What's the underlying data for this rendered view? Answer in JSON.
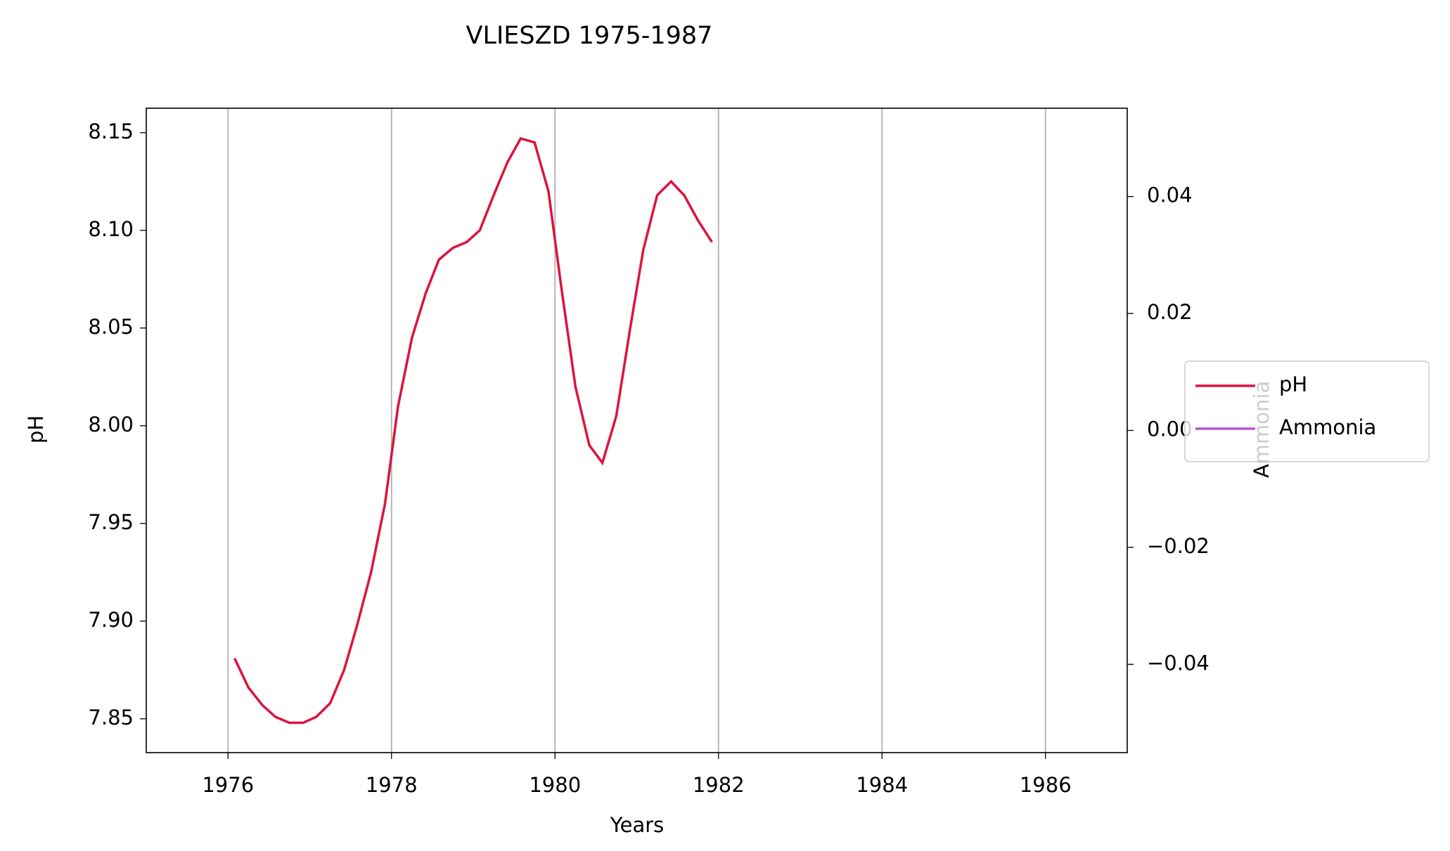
{
  "chart_data": {
    "type": "line",
    "title": "VLIESZD 1975-1987",
    "x_label": "Years",
    "y_label": "pH",
    "y2_label": "Ammonia",
    "x": [
      1976.08,
      1976.25,
      1976.42,
      1976.58,
      1976.75,
      1976.92,
      1977.08,
      1977.25,
      1977.42,
      1977.58,
      1977.75,
      1977.92,
      1978.08,
      1978.25,
      1978.42,
      1978.58,
      1978.75,
      1978.92,
      1979.08,
      1979.25,
      1979.42,
      1979.58,
      1979.75,
      1979.92,
      1980.08,
      1980.25,
      1980.42,
      1980.58,
      1980.75,
      1980.92,
      1981.08,
      1981.25,
      1981.42,
      1981.58,
      1981.75,
      1981.92
    ],
    "series": [
      {
        "name": "pH",
        "color": "#dc143c",
        "values": [
          7.881,
          7.866,
          7.857,
          7.851,
          7.848,
          7.848,
          7.851,
          7.858,
          7.875,
          7.898,
          7.925,
          7.96,
          8.01,
          8.045,
          8.068,
          8.085,
          8.091,
          8.094,
          8.1,
          8.118,
          8.135,
          8.147,
          8.145,
          8.12,
          8.07,
          8.02,
          7.99,
          7.981,
          8.005,
          8.05,
          8.09,
          8.118,
          8.125,
          8.118,
          8.105,
          8.094
        ]
      },
      {
        "name": "Ammonia",
        "color": "#ba55d3",
        "axis": "y2",
        "values": [
          null,
          null,
          null,
          null,
          null,
          null,
          null,
          null,
          null,
          null,
          null,
          null,
          null,
          null,
          null,
          null,
          null,
          null,
          null,
          null,
          null,
          null,
          null,
          null,
          null,
          null,
          null,
          null,
          null,
          null,
          null,
          null,
          null,
          null,
          null,
          null
        ]
      }
    ],
    "xlim": [
      1975,
      1987
    ],
    "xticks": [
      1976,
      1978,
      1980,
      1982,
      1984,
      1986
    ],
    "ylim": [
      7.8327,
      8.1625
    ],
    "yticks": [
      {
        "value": 7.85,
        "label": "7.85"
      },
      {
        "value": 7.9,
        "label": "7.90"
      },
      {
        "value": 7.95,
        "label": "7.95"
      },
      {
        "value": 8.0,
        "label": "8.00"
      },
      {
        "value": 8.05,
        "label": "8.05"
      },
      {
        "value": 8.1,
        "label": "8.10"
      },
      {
        "value": 8.15,
        "label": "8.15"
      }
    ],
    "y2lim": [
      -0.0551,
      0.0551
    ],
    "y2ticks": [
      {
        "value": -0.04,
        "label": "−0.04"
      },
      {
        "value": -0.02,
        "label": "−0.02"
      },
      {
        "value": 0,
        "label": "0.00"
      },
      {
        "value": 0.02,
        "label": "0.02"
      },
      {
        "value": 0.04,
        "label": "0.04"
      }
    ],
    "grid": "x",
    "legend": "right"
  }
}
